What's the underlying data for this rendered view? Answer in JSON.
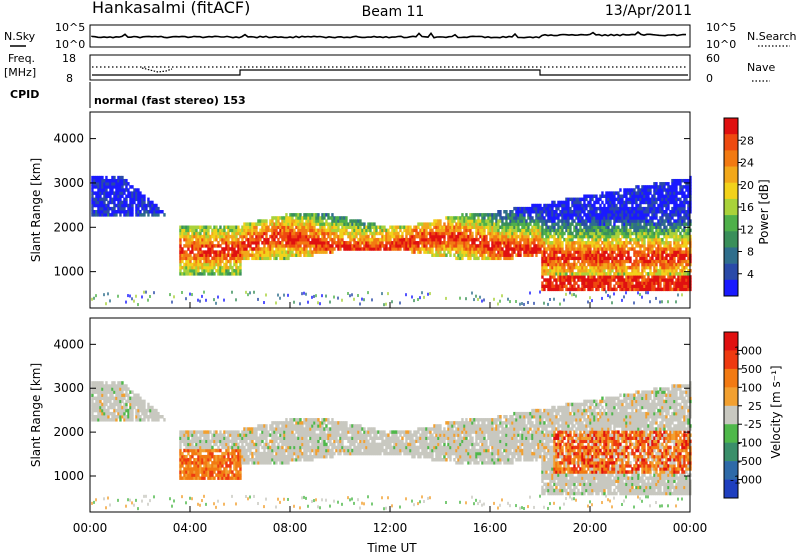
{
  "header": {
    "station": "Hankasalmi (fitACF)",
    "beam": "Beam 11",
    "date": "13/Apr/2011"
  },
  "top_panels": {
    "nsky_label": "N.Sky",
    "nsearch_label": "N.Search",
    "freq_label": "Freq.",
    "freq_unit": "[MHz]",
    "cpid_label": "CPID",
    "nave_label": "Nave",
    "noise_ticks_left": [
      "10^5",
      "10^0"
    ],
    "noise_ticks_right": [
      "10^5",
      "10^0"
    ],
    "freq_ticks": [
      "18",
      "8"
    ],
    "nave_ticks": [
      "60",
      "0"
    ],
    "cpid_text": "normal (fast stereo) 153"
  },
  "chart_data": [
    {
      "type": "heatmap",
      "title": "",
      "xlabel": "",
      "ylabel": "Slant Range [km]",
      "xlim": [
        "00:00",
        "24:00"
      ],
      "ylim": [
        180,
        4600
      ],
      "y_ticks": [
        "4000",
        "3000",
        "2000",
        "1000"
      ],
      "colorbar": {
        "label": "Power [dB]",
        "ticks": [
          "28",
          "24",
          "20",
          "16",
          "12",
          "8",
          "4"
        ],
        "colors": [
          "#1a1aff",
          "#2a4aa8",
          "#2f6e8c",
          "#3a8f5a",
          "#4fb04a",
          "#a9d23a",
          "#f2d21a",
          "#f2a81a",
          "#f27a12",
          "#ee4a10",
          "#e01010"
        ]
      }
    },
    {
      "type": "heatmap",
      "title": "",
      "xlabel": "Time UT",
      "ylabel": "Slant Range [km]",
      "xlim": [
        "00:00",
        "24:00"
      ],
      "ylim": [
        180,
        4600
      ],
      "x_ticks": [
        "00:00",
        "04:00",
        "08:00",
        "12:00",
        "16:00",
        "20:00",
        "00:00"
      ],
      "y_ticks": [
        "4000",
        "3000",
        "2000",
        "1000"
      ],
      "colorbar": {
        "label": "Velocity [m s⁻¹]",
        "ticks": [
          "1000",
          "500",
          "100",
          "25",
          "-25",
          "-100",
          "-500",
          "-1000"
        ],
        "colors": [
          "#1f3fbf",
          "#2e6aa8",
          "#3a8f6a",
          "#4fb84a",
          "#c8c8c0",
          "#f2a030",
          "#f27a12",
          "#ee3a10",
          "#e01010"
        ]
      }
    }
  ]
}
